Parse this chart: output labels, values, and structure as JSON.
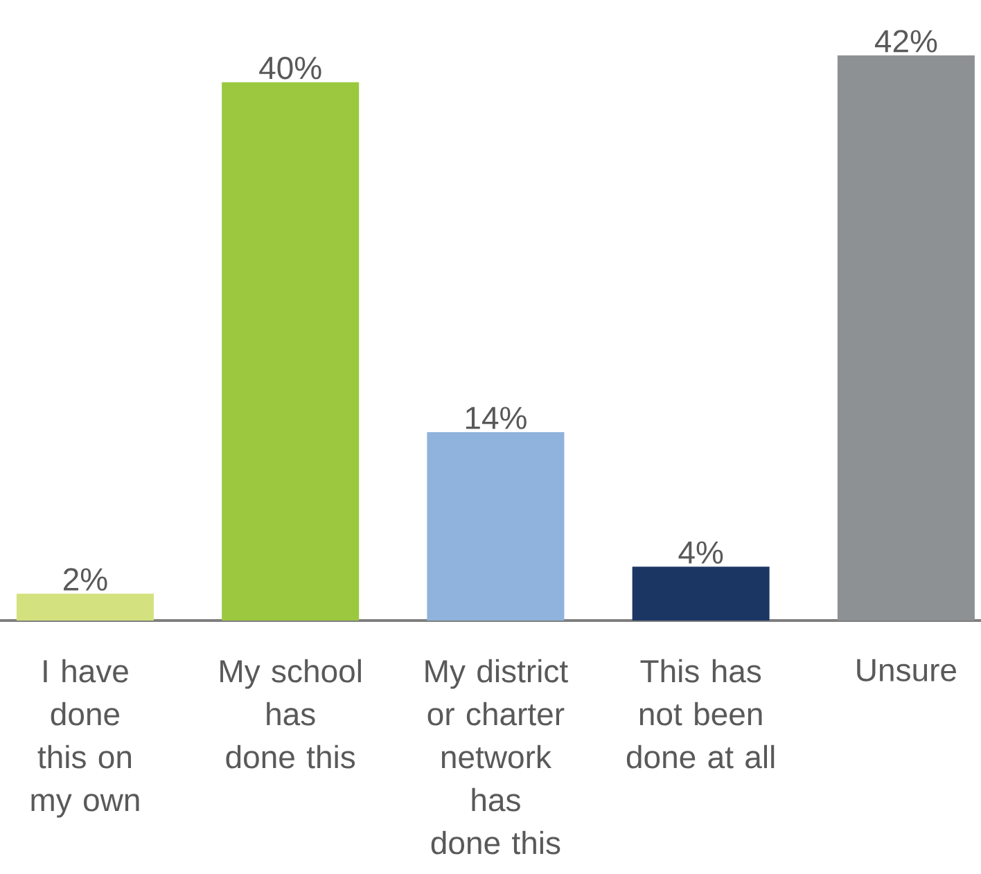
{
  "chart_data": {
    "type": "bar",
    "categories": [
      "I have done this on my own",
      "My school has done this",
      "My district or charter network has done this",
      "This has not been done at all",
      "Unsure"
    ],
    "values": [
      2,
      40,
      14,
      4,
      42
    ],
    "colors": [
      "#d3e27e",
      "#9bc83e",
      "#8fb3dc",
      "#1c3664",
      "#8d9194"
    ],
    "value_labels": [
      "2%",
      "40%",
      "14%",
      "4%",
      "42%"
    ]
  }
}
